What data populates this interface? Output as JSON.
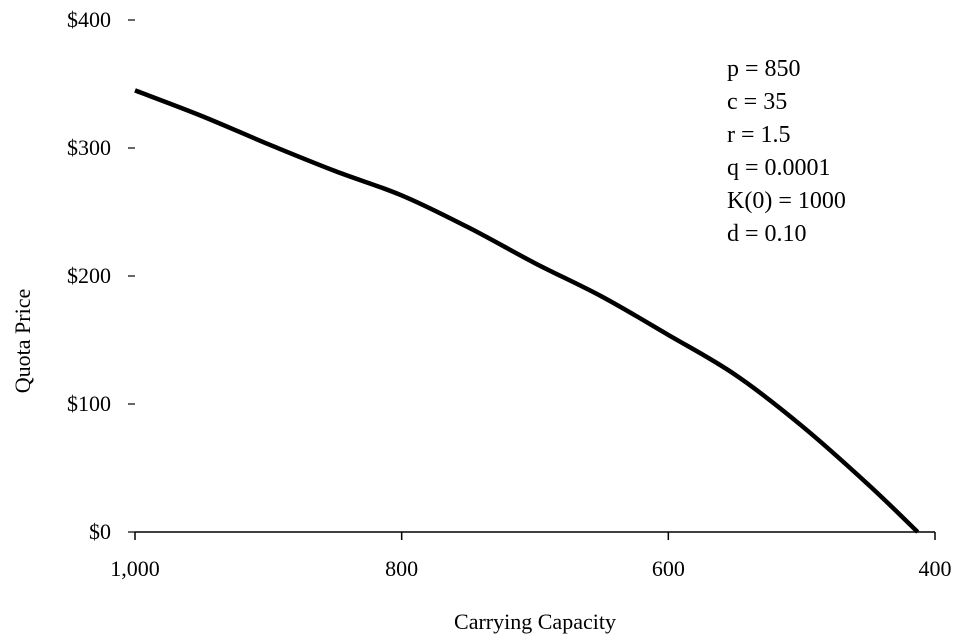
{
  "chart_data": {
    "type": "line",
    "title": "",
    "xlabel": "Carrying Capacity",
    "ylabel": "Quota Price",
    "xlim": [
      1000,
      400
    ],
    "ylim": [
      0,
      400
    ],
    "x_reversed": true,
    "x_ticks": [
      1000,
      800,
      600,
      400
    ],
    "x_tick_labels": [
      "1,000",
      "800",
      "600",
      "400"
    ],
    "y_ticks": [
      0,
      100,
      200,
      300,
      400
    ],
    "y_tick_labels": [
      "$0",
      "$100",
      "$200",
      "$300",
      "$400"
    ],
    "grid": false,
    "legend": "none",
    "series": [
      {
        "color": "#000000",
        "x": [
          1000,
          950,
          900,
          850,
          800,
          750,
          700,
          650,
          600,
          550,
          500,
          450,
          413
        ],
        "y": [
          345,
          325,
          303,
          282,
          263,
          238,
          210,
          184,
          154,
          123,
          83,
          37,
          0
        ]
      }
    ],
    "annotations": [
      "p = 850",
      "c = 35",
      "r = 1.5",
      "q = 0.0001",
      "K(0) = 1000",
      "d = 0.10"
    ]
  }
}
